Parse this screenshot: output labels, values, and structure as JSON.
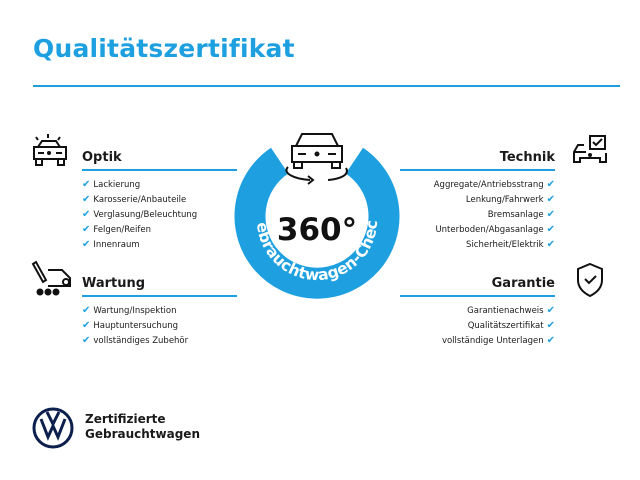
{
  "title": "Qualitätszertifikat",
  "accent": "#1ea0e0",
  "center": {
    "big": "360°",
    "arc_text": "Gebrauchtwagen-Check",
    "icon": "car-rotate-icon"
  },
  "sections": {
    "optik": {
      "title": "Optik",
      "icon": "car-lights-icon",
      "items": [
        "Lackierung",
        "Karosserie/Anbauteile",
        "Verglasung/Beleuchtung",
        "Felgen/Reifen",
        "Innenraum"
      ]
    },
    "wartung": {
      "title": "Wartung",
      "icon": "service-van-icon",
      "items": [
        "Wartung/Inspektion",
        "Hauptuntersuchung",
        "vollständiges Zubehör"
      ]
    },
    "technik": {
      "title": "Technik",
      "icon": "car-checkbox-icon",
      "items": [
        "Aggregate/Antriebsstrang",
        "Lenkung/Fahrwerk",
        "Bremsanlage",
        "Unterboden/Abgasanlage",
        "Sicherheit/Elektrik"
      ]
    },
    "garantie": {
      "title": "Garantie",
      "icon": "shield-check-icon",
      "items": [
        "Garantienachweis",
        "Qualitätszertifikat",
        "vollständige Unterlagen"
      ]
    }
  },
  "check_glyph": "✔",
  "brand": {
    "line1": "Zertifizierte",
    "line2": "Gebrauchtwagen",
    "logo": "vw-logo"
  }
}
